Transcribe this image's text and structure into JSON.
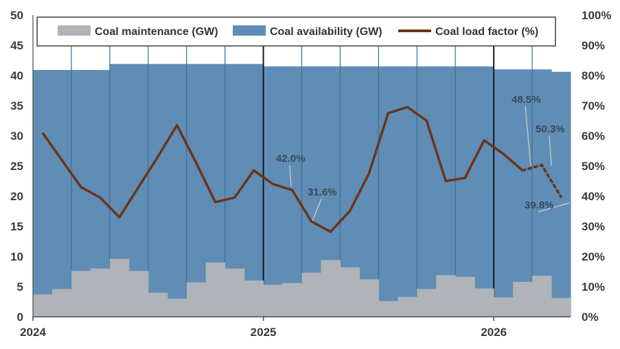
{
  "chart_data": {
    "type": "bar+step-area+line",
    "title": "",
    "categories": [
      "2024-01",
      "2024-02",
      "2024-03",
      "2024-04",
      "2024-05",
      "2024-06",
      "2024-07",
      "2024-08",
      "2024-09",
      "2024-10",
      "2024-11",
      "2024-12",
      "2025-01",
      "2025-02",
      "2025-03",
      "2025-04",
      "2025-05",
      "2025-06",
      "2025-07",
      "2025-08",
      "2025-09",
      "2025-10",
      "2025-11",
      "2025-12",
      "2026-01",
      "2026-02",
      "2026-03",
      "2026-04"
    ],
    "x_tick_labels": [
      "2024",
      "2025",
      "2026"
    ],
    "left_axis": {
      "ylim": [
        0,
        50
      ],
      "ticks": [
        "0",
        "5",
        "10",
        "15",
        "20",
        "25",
        "30",
        "35",
        "40",
        "45",
        "50"
      ],
      "unit": "GW"
    },
    "right_axis": {
      "ylim": [
        0,
        100
      ],
      "ticks": [
        "0%",
        "10%",
        "20%",
        "30%",
        "40%",
        "50%",
        "60%",
        "70%",
        "80%",
        "90%",
        "100%"
      ],
      "unit": "%"
    },
    "series": [
      {
        "name": "Coal maintenance (GW)",
        "kind": "step-area",
        "axis": "left",
        "color": "#b0b3b8",
        "values": [
          3.7,
          4.6,
          7.6,
          8.0,
          9.6,
          7.6,
          4.0,
          3.0,
          5.7,
          9.0,
          8.0,
          6.0,
          5.3,
          5.6,
          7.3,
          9.4,
          8.2,
          6.2,
          2.6,
          3.3,
          4.6,
          6.9,
          6.6,
          4.7,
          3.2,
          5.8,
          6.8,
          3.1
        ]
      },
      {
        "name": "Coal availability (GW)",
        "kind": "step-area",
        "axis": "left",
        "color": "#5f8db5",
        "values": [
          40.9,
          40.9,
          40.9,
          40.9,
          41.9,
          41.9,
          41.9,
          41.9,
          41.9,
          41.9,
          41.9,
          41.9,
          41.5,
          41.5,
          41.5,
          41.5,
          41.5,
          41.5,
          41.5,
          41.5,
          41.5,
          41.5,
          41.5,
          41.5,
          41.0,
          41.0,
          41.0,
          40.6
        ]
      },
      {
        "name": "Coal load factor (%)",
        "kind": "line",
        "axis": "right",
        "color": "#6b3418",
        "values": [
          61,
          52,
          43,
          39.5,
          33,
          43,
          53,
          63.5,
          51,
          38,
          39.5,
          48.5,
          44,
          42,
          31.6,
          28.2,
          35,
          47.5,
          67.5,
          69.5,
          65,
          45,
          46,
          58.5,
          54,
          48.5,
          50.3,
          39.8
        ],
        "forecast_from_index": 25
      }
    ],
    "annotations": [
      {
        "text": "42.0%",
        "index": 13
      },
      {
        "text": "31.6%",
        "index": 14
      },
      {
        "text": "48.5%",
        "index": 25
      },
      {
        "text": "50.3%",
        "index": 26
      },
      {
        "text": "39.8%",
        "index": 27
      }
    ],
    "legend_position": "top"
  },
  "colors": {
    "gridline": "#3d6e95",
    "year_divider": "#151a20",
    "axis_text": "#3a3a3a"
  }
}
